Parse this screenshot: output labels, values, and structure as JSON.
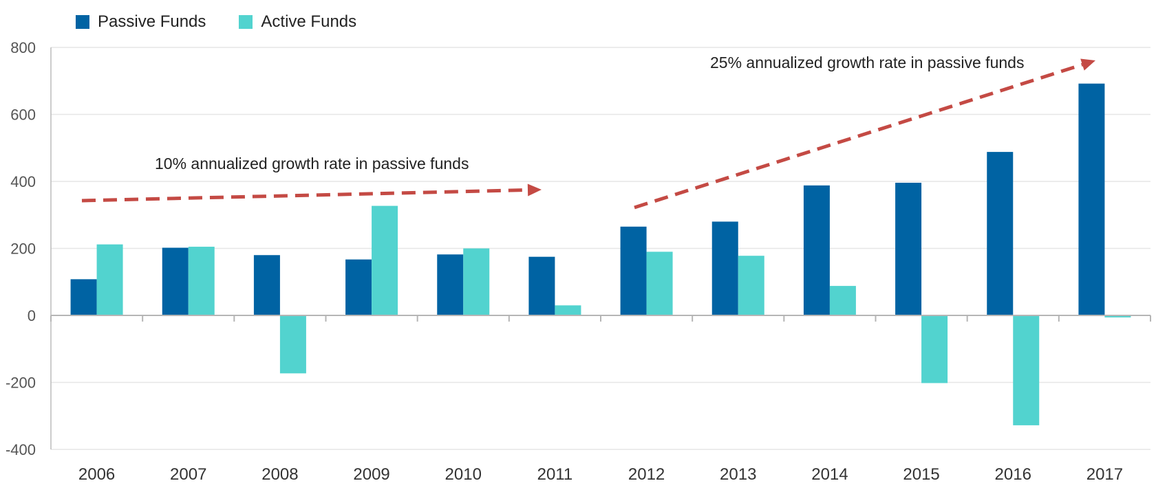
{
  "chart_data": {
    "type": "bar",
    "categories": [
      "2006",
      "2007",
      "2008",
      "2009",
      "2010",
      "2011",
      "2012",
      "2013",
      "2014",
      "2015",
      "2016",
      "2017"
    ],
    "series": [
      {
        "name": "Passive Funds",
        "color": "#0063a3",
        "values": [
          108,
          202,
          180,
          167,
          182,
          175,
          265,
          280,
          388,
          396,
          488,
          692
        ]
      },
      {
        "name": "Active Funds",
        "color": "#52d3cf",
        "values": [
          212,
          205,
          -173,
          327,
          200,
          30,
          190,
          178,
          88,
          -202,
          -328,
          -6
        ]
      }
    ],
    "ylim": [
      -400,
      800
    ],
    "yticks": [
      -400,
      -200,
      0,
      200,
      400,
      600,
      800
    ],
    "grid": true,
    "legend": "top-left",
    "annotations": [
      {
        "text": "10% annualized growth rate in passive funds"
      },
      {
        "text": "25% annualized growth rate in passive funds"
      }
    ],
    "arrow_color": "#c44a44"
  }
}
